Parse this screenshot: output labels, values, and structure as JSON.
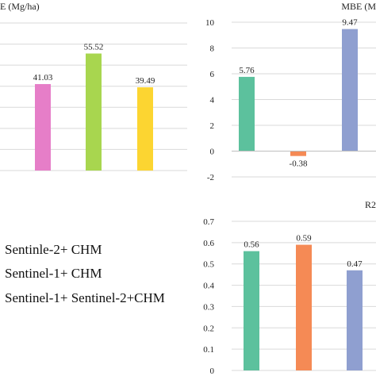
{
  "chart_data": [
    {
      "id": "panel_rmse",
      "type": "bar",
      "title": "E (Mg/ha)",
      "title_color": "#222222",
      "categories": [
        "",
        "",
        ""
      ],
      "values": [
        41.03,
        55.52,
        39.49
      ],
      "value_labels": [
        "41.03",
        "55.52",
        "39.49"
      ],
      "colors": [
        "#e67ec8",
        "#a8d64f",
        "#fcd531"
      ],
      "ylim": [
        0,
        70
      ],
      "grid": true,
      "xlabel": "",
      "ylabel": ""
    },
    {
      "id": "panel_mbe",
      "type": "bar",
      "title": "MBE (M",
      "categories": [
        "",
        "",
        ""
      ],
      "values": [
        5.76,
        -0.38,
        9.47
      ],
      "value_labels": [
        "5.76",
        "-0.38",
        "9.47"
      ],
      "colors": [
        "#5cc19d",
        "#f58a55",
        "#8f9fd0"
      ],
      "ylim": [
        -2,
        10
      ],
      "yticks": [
        "10",
        "8",
        "6",
        "4",
        "2",
        "0",
        "-2"
      ],
      "grid": true,
      "xlabel": "",
      "ylabel": ""
    },
    {
      "id": "panel_r2",
      "type": "bar",
      "title": "R2",
      "categories": [
        "",
        "",
        ""
      ],
      "values": [
        0.56,
        0.59,
        0.47
      ],
      "value_labels": [
        "0.56",
        "0.59",
        "0.47"
      ],
      "colors": [
        "#5cc19d",
        "#f58a55",
        "#8f9fd0"
      ],
      "ylim": [
        0,
        0.7
      ],
      "yticks": [
        "0.7",
        "0.6",
        "0.5",
        "0.4",
        "0.3",
        "0.2",
        "0.1",
        "0"
      ],
      "grid": true,
      "xlabel": "",
      "ylabel": ""
    }
  ],
  "legend": {
    "items": [
      "Sentinle-2+ CHM",
      "Sentinel-1+ CHM",
      "Sentinel-1+ Sentinel-2+CHM"
    ]
  }
}
